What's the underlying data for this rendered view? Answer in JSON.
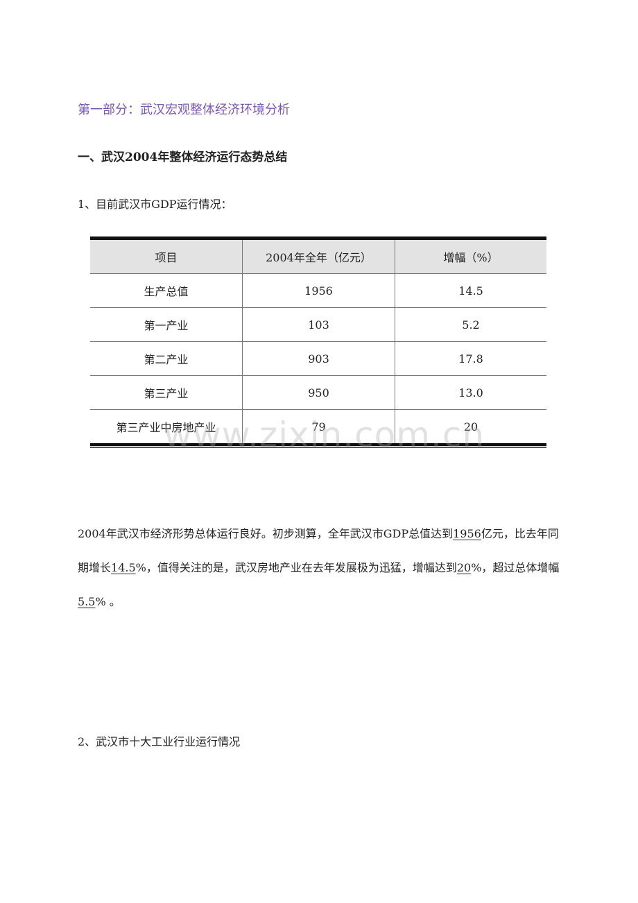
{
  "section_title": "第一部分：武汉宏观整体经济环境分析",
  "heading_1": "一、武汉2004年整体经济运行态势总结",
  "subheading_1": "1、目前武汉市GDP运行情况：",
  "table": {
    "headers": [
      "项目",
      "2004年全年（亿元）",
      "增幅（%）"
    ],
    "rows": [
      [
        "生产总值",
        "1956",
        "14.5"
      ],
      [
        "第一产业",
        "103",
        "5.2"
      ],
      [
        "第二产业",
        "903",
        "17.8"
      ],
      [
        "第三产业",
        "950",
        "13.0"
      ],
      [
        "第三产业中房地产业",
        "79",
        "20"
      ]
    ]
  },
  "watermark": "www.zixin.com.cn",
  "paragraph": {
    "seg0": "2004年武汉市经济形势总体运行良好。初步测算，全年武汉市GDP总值达到",
    "u0": "1956",
    "seg1": "亿元，比去年同期增长",
    "u1": "14.5",
    "seg2": "%，值得关注的是，武汉房地产业在去年发展极为迅猛，增幅达到",
    "u2": "20",
    "seg3": "%，超过总体增幅",
    "u3": "5.5",
    "seg4": "% 。"
  },
  "subheading_2": "2、武汉市十大工业行业运行情况",
  "colors": {
    "title": "#7b57b3",
    "header_bg": "#e3e3e3"
  }
}
